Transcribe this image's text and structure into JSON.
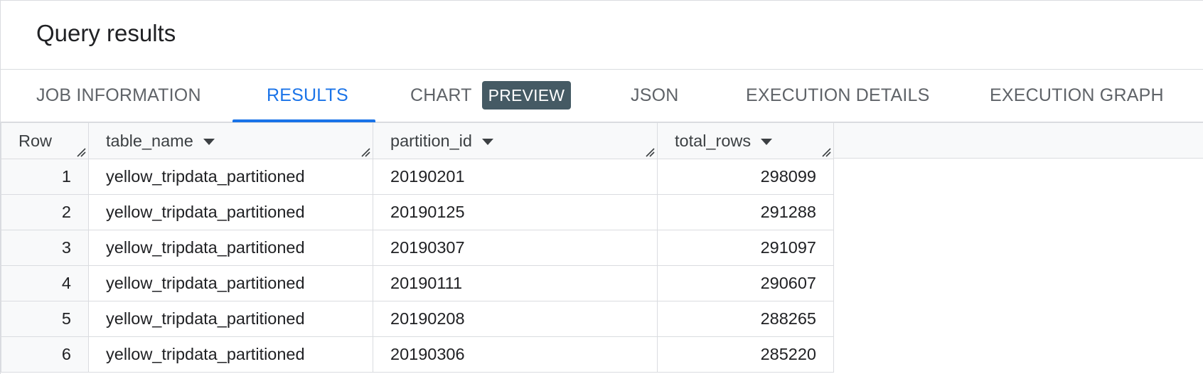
{
  "header": {
    "title": "Query results"
  },
  "tabs": [
    {
      "label": "JOB INFORMATION"
    },
    {
      "label": "RESULTS"
    },
    {
      "label": "CHART",
      "badge": "PREVIEW"
    },
    {
      "label": "JSON"
    },
    {
      "label": "EXECUTION DETAILS"
    },
    {
      "label": "EXECUTION GRAPH"
    }
  ],
  "active_tab": "RESULTS",
  "table": {
    "columns": [
      "Row",
      "table_name",
      "partition_id",
      "total_rows"
    ],
    "rows": [
      [
        "1",
        "yellow_tripdata_partitioned",
        "20190201",
        "298099"
      ],
      [
        "2",
        "yellow_tripdata_partitioned",
        "20190125",
        "291288"
      ],
      [
        "3",
        "yellow_tripdata_partitioned",
        "20190307",
        "291097"
      ],
      [
        "4",
        "yellow_tripdata_partitioned",
        "20190111",
        "290607"
      ],
      [
        "5",
        "yellow_tripdata_partitioned",
        "20190208",
        "288265"
      ],
      [
        "6",
        "yellow_tripdata_partitioned",
        "20190306",
        "285220"
      ]
    ]
  },
  "colors": {
    "accent": "#1a73e8",
    "badge_bg": "#455a64",
    "border": "#dadce0",
    "header_bg": "#f8f9fa"
  },
  "icons": {
    "sort": "arrow-drop-down-icon",
    "resize": "column-resize-icon"
  }
}
